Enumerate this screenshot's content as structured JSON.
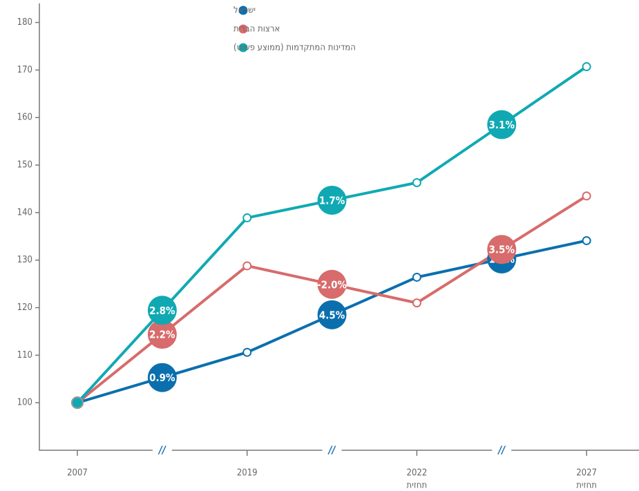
{
  "chart_data": {
    "type": "line",
    "categories": [
      "2007",
      "2019",
      "2022",
      "2027"
    ],
    "category_notes": [
      null,
      null,
      "תחזית",
      "תחזית"
    ],
    "axis_break_label": "//",
    "ylim": [
      90,
      184
    ],
    "yticks": [
      100,
      110,
      120,
      130,
      140,
      150,
      160,
      170,
      180
    ],
    "series": [
      {
        "name": "ישראל",
        "color": "#0b6fae",
        "values": [
          100,
          110.6,
          126.4,
          134.1
        ],
        "growth": [
          0.9,
          4.5,
          1.2
        ],
        "growth_labels": [
          "0.9%",
          "4.5%",
          "1.2%"
        ]
      },
      {
        "name": "ארצות הברית",
        "color": "#d86b6b",
        "values": [
          100,
          128.8,
          121,
          143.5
        ],
        "growth": [
          2.2,
          -2.0,
          3.5
        ],
        "growth_labels": [
          "2.2%",
          "-2.0%",
          "3.5%"
        ]
      },
      {
        "name": "המדינות המתקדמות (ממוצע פשוט)",
        "color": "#10a9b3",
        "values": [
          100,
          138.9,
          146.3,
          170.7
        ],
        "growth": [
          2.8,
          1.7,
          3.1
        ],
        "growth_labels": [
          "2.8%",
          "1.7%",
          "3.1%"
        ]
      }
    ]
  }
}
